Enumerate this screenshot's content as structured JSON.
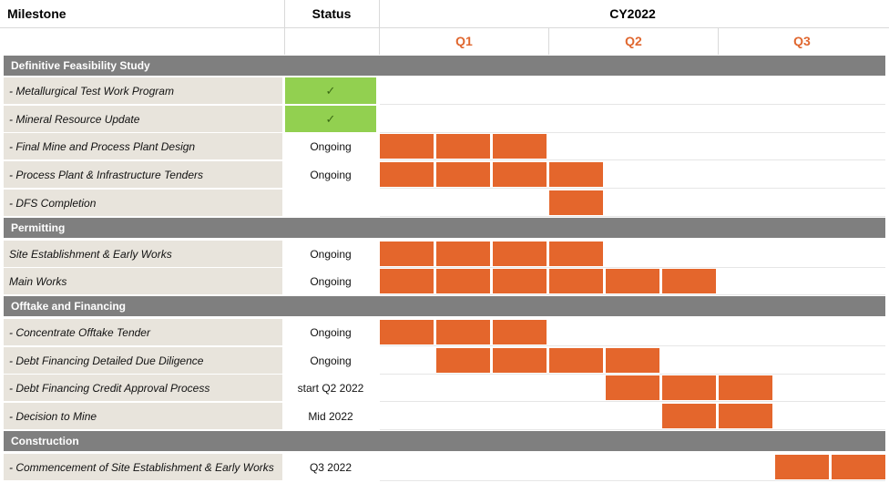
{
  "header": {
    "milestone": "Milestone",
    "status": "Status",
    "year": "CY2022",
    "quarters": [
      "Q1",
      "Q2",
      "Q3"
    ]
  },
  "colors": {
    "section_bg": "#7f7f7f",
    "milestone_bg": "#e8e4dc",
    "bar": "#e4662c",
    "complete": "#92d050",
    "quarter_label": "#e0672f"
  },
  "rows": [
    {
      "type": "section",
      "label": "Definitive Feasibility Study"
    },
    {
      "type": "task",
      "milestone": "- Metallurgical Test Work Program",
      "status": "✓",
      "complete": true,
      "bars": []
    },
    {
      "type": "task",
      "milestone": "- Mineral Resource Update",
      "status": "✓",
      "complete": true,
      "bars": []
    },
    {
      "type": "task",
      "milestone": "- Final Mine and Process Plant Design",
      "status": "Ongoing",
      "bars": [
        0,
        1,
        2
      ]
    },
    {
      "type": "task",
      "milestone": "- Process Plant & Infrastructure Tenders",
      "status": "Ongoing",
      "bars": [
        0,
        1,
        2,
        3
      ]
    },
    {
      "type": "task",
      "milestone": "- DFS Completion",
      "status": "",
      "bars": [
        3
      ]
    },
    {
      "type": "section",
      "label": "Permitting"
    },
    {
      "type": "task",
      "milestone": "Site Establishment & Early Works",
      "status": "Ongoing",
      "bars": [
        0,
        1,
        2,
        3
      ]
    },
    {
      "type": "task",
      "milestone": "Main Works",
      "status": "Ongoing",
      "bars": [
        0,
        1,
        2,
        3,
        4,
        5
      ]
    },
    {
      "type": "section",
      "label": "Offtake and Financing"
    },
    {
      "type": "task",
      "milestone": "- Concentrate Offtake Tender",
      "status": "Ongoing",
      "bars": [
        0,
        1,
        2
      ]
    },
    {
      "type": "task",
      "milestone": "- Debt Financing Detailed Due Diligence",
      "status": "Ongoing",
      "bars": [
        1,
        2,
        3,
        4
      ]
    },
    {
      "type": "task",
      "milestone": "- Debt Financing Credit Approval Process",
      "status": "start Q2 2022",
      "bars": [
        4,
        5,
        6
      ]
    },
    {
      "type": "task",
      "milestone": "- Decision to Mine",
      "status": "Mid 2022",
      "bars": [
        5,
        6
      ]
    },
    {
      "type": "section",
      "label": "Construction"
    },
    {
      "type": "task",
      "milestone": "- Commencement of Site Establishment & Early Works",
      "status": "Q3 2022",
      "bars": [
        7,
        8
      ]
    }
  ]
}
